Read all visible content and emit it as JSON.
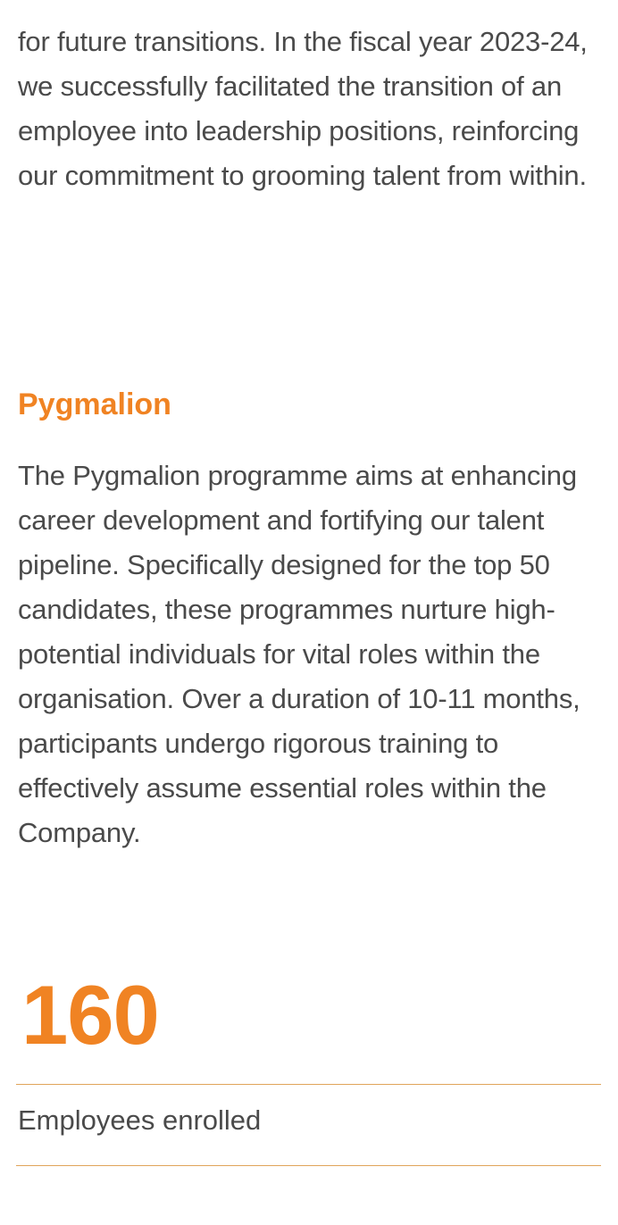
{
  "intro": {
    "text": "for future transitions. In the fiscal year 2023-24, we successfully facilitated the transition of an employee into leadership positions, reinforcing our commitment to grooming talent from within."
  },
  "section": {
    "heading": "Pygmalion",
    "body": "The Pygmalion programme aims at enhancing career development and fortifying our talent pipeline. Specifically designed for the top 50 candidates, these programmes nurture high-potential individuals for vital roles within the organisation. Over a duration of 10-11 months, participants undergo rigorous training to effectively assume essential roles within the Company."
  },
  "stat": {
    "value": "160",
    "label": "Employees enrolled"
  },
  "colors": {
    "accent": "#f08323",
    "text": "#4a4a4a",
    "rule": "#e0a45a"
  }
}
